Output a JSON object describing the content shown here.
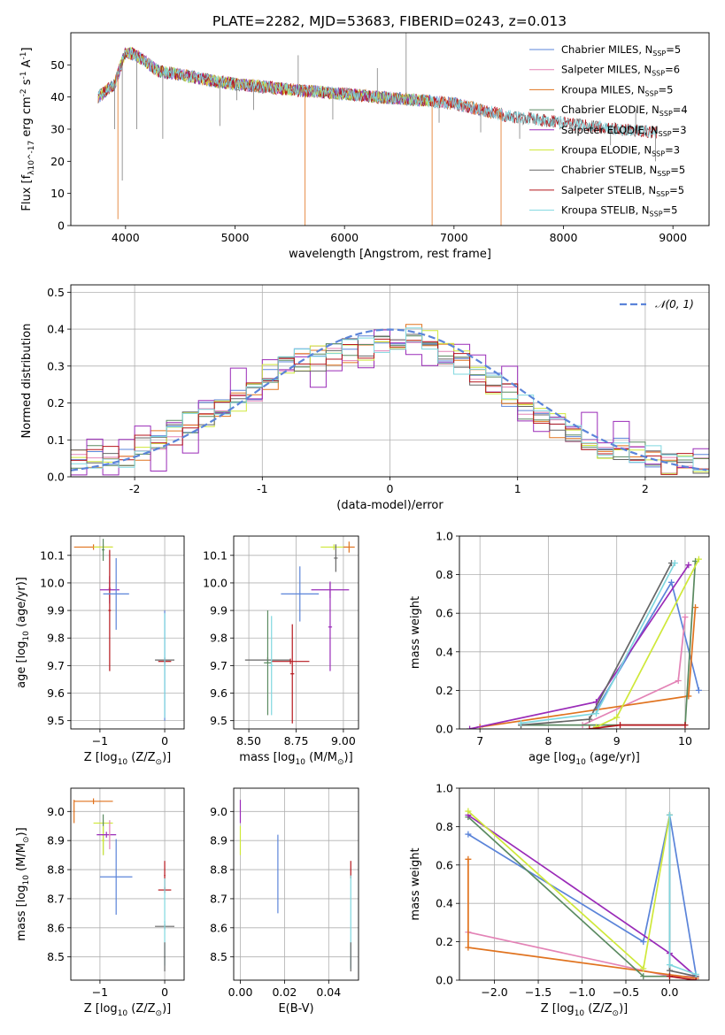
{
  "figure_title": "PLATE=2282, MJD=53683, FIBERID=0243, z=0.013",
  "colors": {
    "Chabrier MILES": "#5b84d9",
    "Salpeter MILES": "#e383b6",
    "Kroupa MILES": "#e0731f",
    "Chabrier ELODIE": "#5a8a60",
    "Salpeter ELODIE": "#9a2bb8",
    "Kroupa ELODIE": "#cfe83a",
    "Chabrier STELIB": "#666666",
    "Salpeter STELIB": "#b5161c",
    "Kroupa STELIB": "#7fd7df"
  },
  "chart_data": [
    {
      "id": "spectrum",
      "type": "line",
      "xlabel": "wavelength [Angstrom, rest frame]",
      "ylabel": "Flux [f_λ10^-17 erg cm^-2 s^-1 A^-1]",
      "xlim": [
        3500,
        9330
      ],
      "ylim": [
        0,
        60
      ],
      "xticks": [
        4000,
        5000,
        6000,
        7000,
        8000,
        9000
      ],
      "yticks": [
        0,
        10,
        20,
        30,
        40,
        50
      ],
      "legend_position": "top-right",
      "series": [
        {
          "name": "Chabrier MILES",
          "nssp": "5",
          "x_range": [
            3750,
            7450
          ]
        },
        {
          "name": "Salpeter MILES",
          "nssp": "6",
          "x_range": [
            3750,
            7450
          ]
        },
        {
          "name": "Kroupa MILES",
          "nssp": "5",
          "x_range": [
            3750,
            7450
          ]
        },
        {
          "name": "Chabrier ELODIE",
          "nssp": "4",
          "x_range": [
            3750,
            6800
          ]
        },
        {
          "name": "Salpeter ELODIE",
          "nssp": "3",
          "x_range": [
            3750,
            6800
          ]
        },
        {
          "name": "Kroupa ELODIE",
          "nssp": "3",
          "x_range": [
            3750,
            6800
          ]
        },
        {
          "name": "Chabrier STELIB",
          "nssp": "5",
          "x_range": [
            3750,
            8850
          ]
        },
        {
          "name": "Salpeter STELIB",
          "nssp": "5",
          "x_range": [
            3750,
            8850
          ]
        },
        {
          "name": "Kroupa STELIB",
          "nssp": "5",
          "x_range": [
            3750,
            8850
          ]
        }
      ],
      "continuum": {
        "x": [
          3750,
          3900,
          4000,
          4100,
          4300,
          4500,
          4800,
          5000,
          5300,
          5600,
          6000,
          6300,
          6700,
          7000,
          7500,
          8000,
          8500,
          8850
        ],
        "y": [
          40,
          44,
          54,
          53,
          48,
          47,
          45,
          44,
          43,
          42,
          41,
          40,
          39,
          38,
          34,
          32,
          30,
          29
        ]
      },
      "spikes": [
        {
          "x": 3900,
          "y": 30
        },
        {
          "x": 3930,
          "y": 2
        },
        {
          "x": 3970,
          "y": 14
        },
        {
          "x": 4102,
          "y": 30
        },
        {
          "x": 4340,
          "y": 27
        },
        {
          "x": 4861,
          "y": 31
        },
        {
          "x": 5015,
          "y": 39
        },
        {
          "x": 5170,
          "y": 36
        },
        {
          "x": 5577,
          "y": 53
        },
        {
          "x": 5640,
          "y": 0
        },
        {
          "x": 5893,
          "y": 33
        },
        {
          "x": 6300,
          "y": 49
        },
        {
          "x": 6563,
          "y": 60
        },
        {
          "x": 6800,
          "y": 0
        },
        {
          "x": 6864,
          "y": 32
        },
        {
          "x": 7244,
          "y": 29
        },
        {
          "x": 7430,
          "y": 0
        },
        {
          "x": 7600,
          "y": 27
        },
        {
          "x": 7913,
          "y": 33
        },
        {
          "x": 8344,
          "y": 32
        },
        {
          "x": 8430,
          "y": 25
        },
        {
          "x": 8500,
          "y": 30
        },
        {
          "x": 8660,
          "y": 36
        },
        {
          "x": 8840,
          "y": 20
        }
      ]
    },
    {
      "id": "residuals",
      "type": "step",
      "xlabel": "(data-model)/error",
      "ylabel": "Normed distribution",
      "xlim": [
        -2.5,
        2.5
      ],
      "ylim": [
        0,
        0.52
      ],
      "xticks": [
        -2,
        -1,
        0,
        1,
        2
      ],
      "yticks": [
        0.0,
        0.1,
        0.2,
        0.3,
        0.4,
        0.5
      ],
      "grid": true,
      "legend_position": "top-right",
      "gaussian": {
        "name": "𝒩(0, 1)",
        "mean": 0,
        "sigma": 1,
        "style": "dashed"
      },
      "base_hist": [
        0.04,
        0.05,
        0.06,
        0.06,
        0.08,
        0.09,
        0.12,
        0.15,
        0.17,
        0.18,
        0.21,
        0.24,
        0.27,
        0.3,
        0.32,
        0.32,
        0.33,
        0.34,
        0.35,
        0.37,
        0.38,
        0.38,
        0.37,
        0.34,
        0.31,
        0.28,
        0.25,
        0.22,
        0.19,
        0.16,
        0.14,
        0.12,
        0.1,
        0.08,
        0.07,
        0.06,
        0.05,
        0.04,
        0.03,
        0.03
      ],
      "bin_start": -2.5,
      "bin_width": 0.125,
      "hist_series": [
        "Chabrier MILES",
        "Salpeter MILES",
        "Kroupa MILES",
        "Chabrier ELODIE",
        "Salpeter ELODIE",
        "Kroupa ELODIE",
        "Chabrier STELIB",
        "Salpeter STELIB",
        "Kroupa STELIB"
      ]
    },
    {
      "id": "age_vs_Z",
      "type": "errorbar",
      "xlabel": "Z [log10(Z/Z⊙)]",
      "ylabel": "age  [log10(age/yr)]",
      "xlim": [
        -1.45,
        0.3
      ],
      "ylim": [
        9.47,
        10.17
      ],
      "xticks": [
        -1,
        0
      ],
      "xtick_labels": [
        "−1",
        "0"
      ],
      "yticks": [
        9.5,
        9.6,
        9.7,
        9.8,
        9.9,
        10.0,
        10.1
      ],
      "grid": true,
      "points": [
        {
          "series": "Kroupa MILES",
          "x": -1.1,
          "y": 10.13,
          "xerr": 0.3,
          "yerr": 0.01
        },
        {
          "series": "Kroupa ELODIE",
          "x": -0.95,
          "y": 10.13,
          "xerr": 0.15,
          "yerr": 0.01
        },
        {
          "series": "Chabrier ELODIE",
          "x": -0.95,
          "y": 10.12,
          "xerr": 0.02,
          "yerr": 0.04
        },
        {
          "series": "Salpeter ELODIE",
          "x": -0.85,
          "y": 9.975,
          "xerr": 0.15,
          "yerr": 0.05
        },
        {
          "series": "Salpeter MILES",
          "x": -0.85,
          "y": 9.98,
          "xerr": 0.02,
          "yerr": 0.04
        },
        {
          "series": "Salpeter STELIB",
          "x": -0.85,
          "y": 9.9,
          "xerr": 0.02,
          "yerr": 0.22
        },
        {
          "series": "Chabrier MILES",
          "x": -0.75,
          "y": 9.96,
          "xerr": 0.2,
          "yerr": 0.13
        },
        {
          "series": "Chabrier STELIB",
          "x": 0.0,
          "y": 9.72,
          "xerr": 0.15,
          "yerr": 0.01
        },
        {
          "series": "Salpeter STELIB",
          "x": 0.0,
          "y": 9.715,
          "xerr": 0.1,
          "yerr": 0.01
        },
        {
          "series": "Chabrier MILES",
          "x": 0.0,
          "y": 9.7,
          "xerr": 0.01,
          "yerr": 0.2
        },
        {
          "series": "Kroupa STELIB",
          "x": 0.0,
          "y": 9.7,
          "xerr": 0.01,
          "yerr": 0.19
        }
      ]
    },
    {
      "id": "age_vs_mass",
      "type": "errorbar",
      "xlabel": "mass [log10(M/M⊙)]",
      "ylabel": "",
      "xlim": [
        8.42,
        9.08
      ],
      "ylim": [
        9.47,
        10.17
      ],
      "xticks": [
        8.5,
        8.75,
        9.0
      ],
      "xtick_labels": [
        "8.50",
        "8.75",
        "9.00"
      ],
      "yticks": [
        9.5,
        9.6,
        9.7,
        9.8,
        9.9,
        10.0,
        10.1
      ],
      "grid": true,
      "points": [
        {
          "series": "Chabrier STELIB",
          "x": 8.6,
          "y": 9.72,
          "xerr": 0.12,
          "yerr": 0.01
        },
        {
          "series": "Salpeter STELIB",
          "x": 8.72,
          "y": 9.715,
          "xerr": 0.1,
          "yerr": 0.01
        },
        {
          "series": "Chabrier ELODIE",
          "x": 8.6,
          "y": 9.71,
          "xerr": 0.02,
          "yerr": 0.19
        },
        {
          "series": "Kroupa STELIB",
          "x": 8.62,
          "y": 9.7,
          "xerr": 0.01,
          "yerr": 0.18
        },
        {
          "series": "Salpeter STELIB",
          "x": 8.73,
          "y": 9.67,
          "xerr": 0.01,
          "yerr": 0.18
        },
        {
          "series": "Chabrier MILES",
          "x": 8.77,
          "y": 9.96,
          "xerr": 0.1,
          "yerr": 0.1
        },
        {
          "series": "Salpeter ELODIE",
          "x": 8.93,
          "y": 9.975,
          "xerr": 0.1,
          "yerr": 0.03
        },
        {
          "series": "Salpeter ELODIE",
          "x": 8.93,
          "y": 9.84,
          "xerr": 0.01,
          "yerr": 0.16
        },
        {
          "series": "Kroupa ELODIE",
          "x": 8.95,
          "y": 10.13,
          "xerr": 0.07,
          "yerr": 0.01
        },
        {
          "series": "Kroupa MILES",
          "x": 9.03,
          "y": 10.13,
          "xerr": 0.03,
          "yerr": 0.02
        },
        {
          "series": "Chabrier STELIB",
          "x": 8.96,
          "y": 10.09,
          "xerr": 0.01,
          "yerr": 0.05
        }
      ]
    },
    {
      "id": "weight_vs_age",
      "type": "line",
      "xlabel": "age  [log10(age/yr)]",
      "ylabel": "mass weight",
      "xlim": [
        6.7,
        10.35
      ],
      "ylim": [
        0,
        1.0
      ],
      "xticks": [
        7,
        8,
        9,
        10
      ],
      "yticks": [
        0.0,
        0.2,
        0.4,
        0.6,
        0.8,
        1.0
      ],
      "grid": true,
      "series": [
        {
          "name": "Chabrier MILES",
          "x": [
            8.7,
            9.8,
            10.2
          ],
          "y": [
            0.1,
            0.76,
            0.2
          ]
        },
        {
          "name": "Salpeter MILES",
          "x": [
            8.5,
            9.9,
            10.0
          ],
          "y": [
            0.02,
            0.25,
            0.58
          ]
        },
        {
          "name": "Kroupa MILES",
          "x": [
            7.0,
            10.05,
            10.15
          ],
          "y": [
            0.01,
            0.17,
            0.63
          ]
        },
        {
          "name": "Chabrier ELODIE",
          "x": [
            7.6,
            10.0,
            10.15
          ],
          "y": [
            0.02,
            0.02,
            0.87
          ]
        },
        {
          "name": "Salpeter ELODIE",
          "x": [
            6.85,
            8.7,
            10.05
          ],
          "y": [
            0.0,
            0.14,
            0.85
          ]
        },
        {
          "name": "Kroupa ELODIE",
          "x": [
            8.7,
            9.0,
            10.2
          ],
          "y": [
            0.01,
            0.06,
            0.88
          ]
        },
        {
          "name": "Chabrier STELIB",
          "x": [
            7.6,
            8.6,
            9.8
          ],
          "y": [
            0.02,
            0.05,
            0.86
          ]
        },
        {
          "name": "Salpeter STELIB",
          "x": [
            8.6,
            9.05,
            10.0
          ],
          "y": [
            0.0,
            0.02,
            0.02
          ]
        },
        {
          "name": "Kroupa STELIB",
          "x": [
            7.6,
            8.7,
            9.85
          ],
          "y": [
            0.03,
            0.08,
            0.86
          ]
        }
      ]
    },
    {
      "id": "mass_vs_Z",
      "type": "errorbar",
      "xlabel": "Z [log10(Z/Z⊙)]",
      "ylabel": "mass [log10(M/M⊙)]",
      "xlim": [
        -1.45,
        0.3
      ],
      "ylim": [
        8.42,
        9.08
      ],
      "xticks": [
        -1,
        0
      ],
      "xtick_labels": [
        "−1",
        "0"
      ],
      "yticks": [
        8.5,
        8.6,
        8.7,
        8.8,
        8.9,
        9.0
      ],
      "grid": true,
      "points": [
        {
          "series": "Kroupa MILES",
          "x": -1.1,
          "y": 9.035,
          "xerr": 0.3,
          "yerr": 0.01
        },
        {
          "series": "Kroupa MILES",
          "x": -1.4,
          "y": 9.0,
          "xerr": 0.01,
          "yerr": 0.04
        },
        {
          "series": "Kroupa ELODIE",
          "x": -0.95,
          "y": 8.96,
          "xerr": 0.15,
          "yerr": 0.01
        },
        {
          "series": "Chabrier ELODIE",
          "x": -0.95,
          "y": 8.92,
          "xerr": 0.02,
          "yerr": 0.07
        },
        {
          "series": "Kroupa ELODIE",
          "x": -0.95,
          "y": 8.9,
          "xerr": 0.02,
          "yerr": 0.05
        },
        {
          "series": "Salpeter ELODIE",
          "x": -0.9,
          "y": 8.92,
          "xerr": 0.15,
          "yerr": 0.01
        },
        {
          "series": "Salpeter MILES",
          "x": -0.85,
          "y": 8.92,
          "xerr": 0.01,
          "yerr": 0.05
        },
        {
          "series": "Chabrier MILES",
          "x": -0.75,
          "y": 8.775,
          "xerr": 0.25,
          "yerr": 0.13
        },
        {
          "series": "Salpeter STELIB",
          "x": 0.0,
          "y": 8.73,
          "xerr": 0.1,
          "yerr": 0.01
        },
        {
          "series": "Salpeter STELIB",
          "x": 0.0,
          "y": 8.78,
          "xerr": 0.01,
          "yerr": 0.05
        },
        {
          "series": "Chabrier STELIB",
          "x": 0.0,
          "y": 8.605,
          "xerr": 0.15,
          "yerr": 0.01
        },
        {
          "series": "Kroupa STELIB",
          "x": 0.0,
          "y": 8.62,
          "xerr": 0.01,
          "yerr": 0.15
        },
        {
          "series": "Chabrier STELIB",
          "x": 0.0,
          "y": 8.5,
          "xerr": 0.01,
          "yerr": 0.05
        }
      ]
    },
    {
      "id": "mass_vs_ebv",
      "type": "errorbar",
      "xlabel": "E(B-V)",
      "ylabel": "",
      "xlim": [
        -0.003,
        0.0535
      ],
      "ylim": [
        8.42,
        9.08
      ],
      "xticks": [
        0.0,
        0.02,
        0.04
      ],
      "xtick_labels": [
        "0.00",
        "0.02",
        "0.04"
      ],
      "yticks": [
        8.5,
        8.6,
        8.7,
        8.8,
        8.9,
        9.0
      ],
      "grid": true,
      "points": [
        {
          "series": "Salpeter ELODIE",
          "x": 0.0,
          "y": 9.0,
          "xerr": 0.0,
          "yerr": 0.04
        },
        {
          "series": "Kroupa ELODIE",
          "x": 0.0,
          "y": 8.9,
          "xerr": 0.0,
          "yerr": 0.05
        },
        {
          "series": "Chabrier MILES",
          "x": 0.017,
          "y": 8.785,
          "xerr": 0.0,
          "yerr": 0.135
        },
        {
          "series": "Salpeter STELIB",
          "x": 0.05,
          "y": 8.8,
          "xerr": 0.0,
          "yerr": 0.03
        },
        {
          "series": "Kroupa STELIB",
          "x": 0.05,
          "y": 8.62,
          "xerr": 0.0,
          "yerr": 0.16
        },
        {
          "series": "Chabrier STELIB",
          "x": 0.05,
          "y": 8.5,
          "xerr": 0.0,
          "yerr": 0.05
        }
      ]
    },
    {
      "id": "weight_vs_Z",
      "type": "line",
      "xlabel": "Z [log10(Z/Z⊙)]",
      "ylabel": "mass weight",
      "xlim": [
        -2.4,
        0.45
      ],
      "ylim": [
        0,
        1.0
      ],
      "xticks": [
        -2.0,
        -1.5,
        -1.0,
        -0.5,
        0.0
      ],
      "xtick_labels": [
        "−2.0",
        "−1.5",
        "−1.0",
        "−0.5",
        "0.0"
      ],
      "yticks": [
        0.0,
        0.2,
        0.4,
        0.6,
        0.8,
        1.0
      ],
      "grid": true,
      "series": [
        {
          "name": "Chabrier MILES",
          "x": [
            -2.3,
            -0.3,
            0.0,
            0.3
          ],
          "y": [
            0.76,
            0.2,
            0.86,
            0.03
          ]
        },
        {
          "name": "Salpeter MILES",
          "x": [
            -2.3,
            0.0,
            0.3
          ],
          "y": [
            0.25,
            0.02,
            0.02
          ]
        },
        {
          "name": "Kroupa MILES",
          "x": [
            -2.3,
            -2.3,
            0.3
          ],
          "y": [
            0.63,
            0.17,
            0.01
          ]
        },
        {
          "name": "Chabrier ELODIE",
          "x": [
            -2.3,
            -0.3,
            0.0
          ],
          "y": [
            0.85,
            0.02,
            0.02
          ]
        },
        {
          "name": "Salpeter ELODIE",
          "x": [
            -2.3,
            0.0,
            0.3
          ],
          "y": [
            0.86,
            0.14,
            0.02
          ]
        },
        {
          "name": "Kroupa ELODIE",
          "x": [
            -2.3,
            -0.3,
            0.0
          ],
          "y": [
            0.88,
            0.06,
            0.86
          ]
        },
        {
          "name": "Chabrier STELIB",
          "x": [
            0.0,
            0.0,
            0.3
          ],
          "y": [
            0.86,
            0.05,
            0.02
          ]
        },
        {
          "name": "Salpeter STELIB",
          "x": [
            0.0,
            0.3
          ],
          "y": [
            0.02,
            0.0
          ]
        },
        {
          "name": "Kroupa STELIB",
          "x": [
            0.0,
            0.0,
            0.3
          ],
          "y": [
            0.86,
            0.08,
            0.03
          ]
        }
      ]
    }
  ]
}
